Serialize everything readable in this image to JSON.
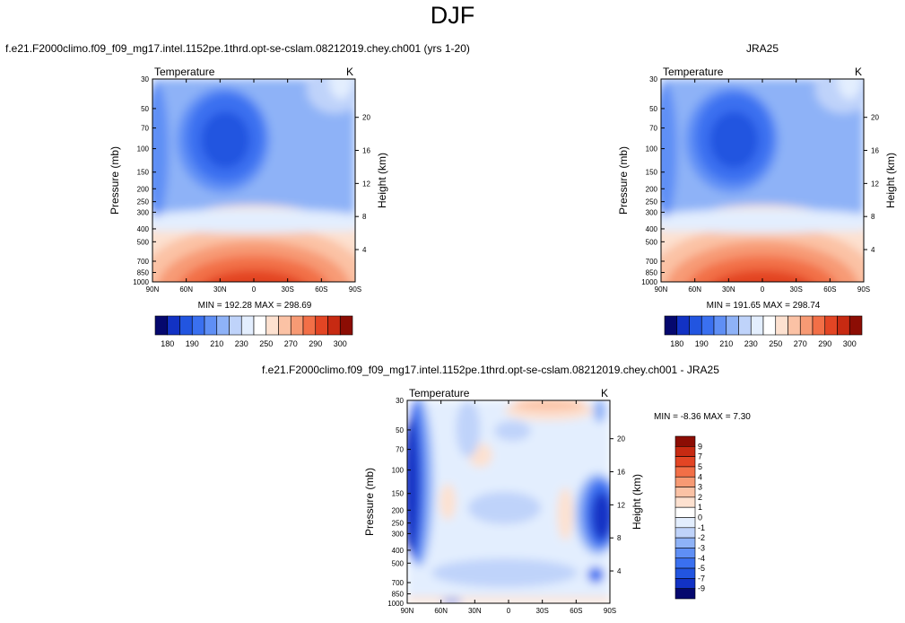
{
  "main_title": "DJF",
  "chart_data": [
    {
      "type": "contour",
      "id": "model",
      "title": "f.e21.F2000climo.f09_f09_mg17.intel.1152pe.1thrd.opt-se-cslam.08212019.chey.ch001 (yrs 1-20)",
      "left_label": "Temperature",
      "right_label": "K",
      "ylabel": "Pressure (mb)",
      "ylabel_right": "Height (km)",
      "xticks": [
        "90N",
        "60N",
        "30N",
        "0",
        "30S",
        "60S",
        "90S"
      ],
      "pressure_ticks": [
        30,
        50,
        70,
        100,
        150,
        200,
        250,
        300,
        400,
        500,
        700,
        850,
        1000
      ],
      "height_ticks": [
        20,
        16,
        12,
        8,
        4
      ],
      "stats": "MIN = 192.28   MAX = 298.69",
      "min": 192.28,
      "max": 298.69,
      "colorbar": {
        "labels": [
          "180",
          "190",
          "210",
          "230",
          "250",
          "270",
          "290",
          "300"
        ],
        "colors": [
          "#05086e",
          "#1232c4",
          "#2255e0",
          "#3a70f0",
          "#5f8ff5",
          "#8eb2f7",
          "#bfd3fa",
          "#e3eefe",
          "#ffffff",
          "#fde1d0",
          "#fbc2a5",
          "#f79a74",
          "#f26f47",
          "#e34524",
          "#c72a12",
          "#8c0d04"
        ]
      }
    },
    {
      "type": "contour",
      "id": "obs",
      "title": "JRA25",
      "left_label": "Temperature",
      "right_label": "K",
      "ylabel": "Pressure (mb)",
      "ylabel_right": "Height (km)",
      "xticks": [
        "90N",
        "60N",
        "30N",
        "0",
        "30S",
        "60S",
        "90S"
      ],
      "pressure_ticks": [
        30,
        50,
        70,
        100,
        150,
        200,
        250,
        300,
        400,
        500,
        700,
        850,
        1000
      ],
      "height_ticks": [
        20,
        16,
        12,
        8,
        4
      ],
      "stats": "MIN = 191.65   MAX = 298.74",
      "min": 191.65,
      "max": 298.74,
      "colorbar": {
        "labels": [
          "180",
          "190",
          "210",
          "230",
          "250",
          "270",
          "290",
          "300"
        ],
        "colors": [
          "#05086e",
          "#1232c4",
          "#2255e0",
          "#3a70f0",
          "#5f8ff5",
          "#8eb2f7",
          "#bfd3fa",
          "#e3eefe",
          "#ffffff",
          "#fde1d0",
          "#fbc2a5",
          "#f79a74",
          "#f26f47",
          "#e34524",
          "#c72a12",
          "#8c0d04"
        ]
      }
    },
    {
      "type": "contour",
      "id": "diff",
      "title": "f.e21.F2000climo.f09_f09_mg17.intel.1152pe.1thrd.opt-se-cslam.08212019.chey.ch001 - JRA25",
      "left_label": "Temperature",
      "right_label": "K",
      "ylabel": "Pressure (mb)",
      "ylabel_right": "Height (km)",
      "xticks": [
        "90N",
        "60N",
        "30N",
        "0",
        "30S",
        "60S",
        "90S"
      ],
      "pressure_ticks": [
        30,
        50,
        70,
        100,
        150,
        200,
        250,
        300,
        400,
        500,
        700,
        850,
        1000
      ],
      "height_ticks": [
        20,
        16,
        12,
        8,
        4
      ],
      "stats": "MIN = -8.36   MAX =  7.30",
      "min": -8.36,
      "max": 7.3,
      "colorbar": {
        "labels": [
          "9",
          "7",
          "5",
          "4",
          "3",
          "2",
          "1",
          "0",
          "-1",
          "-2",
          "-3",
          "-4",
          "-5",
          "-7",
          "-9"
        ],
        "colors": [
          "#8c0d04",
          "#c72a12",
          "#e34524",
          "#f26f47",
          "#f79a74",
          "#fbc2a5",
          "#fde1d0",
          "#ffffff",
          "#e3eefe",
          "#bfd3fa",
          "#8eb2f7",
          "#5f8ff5",
          "#3a70f0",
          "#2255e0",
          "#1232c4",
          "#05086e"
        ]
      }
    }
  ]
}
